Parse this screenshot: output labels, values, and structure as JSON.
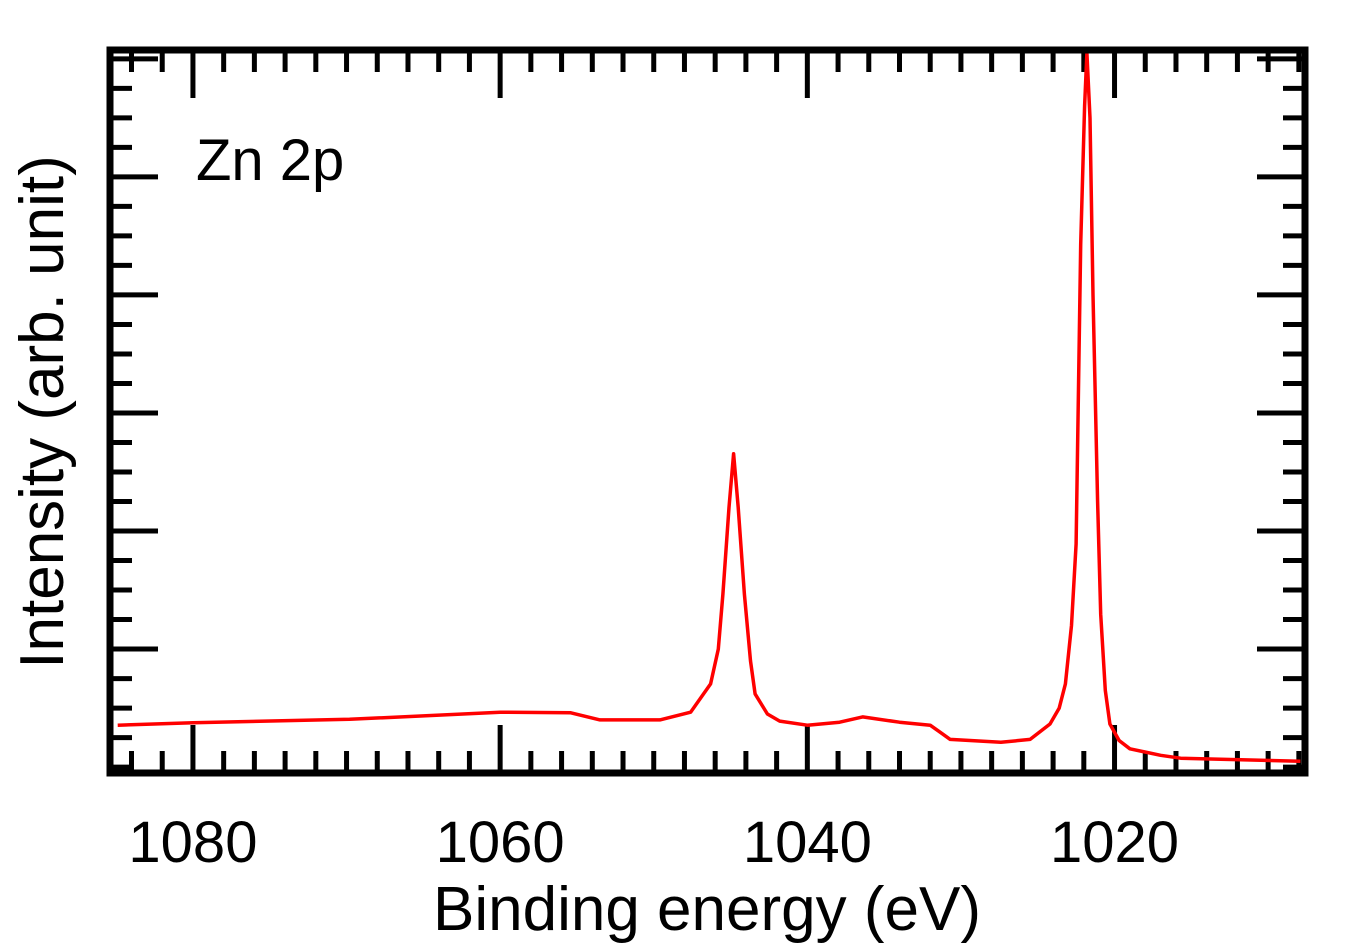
{
  "chart_data": {
    "type": "line",
    "title": "",
    "annotation": "Zn 2p",
    "xlabel": "Binding energy (eV)",
    "ylabel": "Intensity (arb. unit)",
    "xlim": [
      1085.4,
      1007.6
    ],
    "x_reversed": true,
    "ylim": [
      -0.1,
      12.15
    ],
    "x_major_ticks": [
      1080,
      1060,
      1040,
      1020
    ],
    "x_tick_labels": [
      "1080",
      "1060",
      "1040",
      "1020"
    ],
    "x_minor_step": 2,
    "y_major_step": 2,
    "y_minor_step": 0.5,
    "y_tick_labels_shown": false,
    "grid": false,
    "line_color": "#ff0000",
    "series": [
      {
        "x": [
          1084.9,
          1080,
          1069.8,
          1060,
          1055.4,
          1053.5,
          1049.6,
          1047.6,
          1046.3,
          1045.8,
          1045.5,
          1045.1,
          1044.8,
          1044.5,
          1044.1,
          1043.7,
          1043.4,
          1042.6,
          1041.8,
          1040,
          1037.9,
          1036.4,
          1034,
          1032,
          1031.4,
          1030.7,
          1027.4,
          1025.5,
          1024.2,
          1023.6,
          1023.2,
          1022.8,
          1022.5,
          1022.2,
          1021.95,
          1021.8,
          1021.6,
          1021.4,
          1021.1,
          1020.9,
          1020.6,
          1020.3,
          1019.7,
          1019,
          1017,
          1015.7,
          1007.9
        ],
        "y": [
          0.71,
          0.75,
          0.81,
          0.93,
          0.92,
          0.8,
          0.8,
          0.93,
          1.41,
          2.0,
          2.93,
          4.4,
          5.31,
          4.4,
          2.93,
          1.8,
          1.24,
          0.9,
          0.78,
          0.71,
          0.76,
          0.85,
          0.76,
          0.71,
          0.6,
          0.47,
          0.42,
          0.47,
          0.73,
          1.0,
          1.41,
          2.4,
          3.78,
          8.86,
          11.2,
          12.1,
          11.0,
          8.0,
          4.5,
          2.59,
          1.3,
          0.73,
          0.45,
          0.31,
          0.2,
          0.15,
          0.1
        ]
      }
    ]
  }
}
